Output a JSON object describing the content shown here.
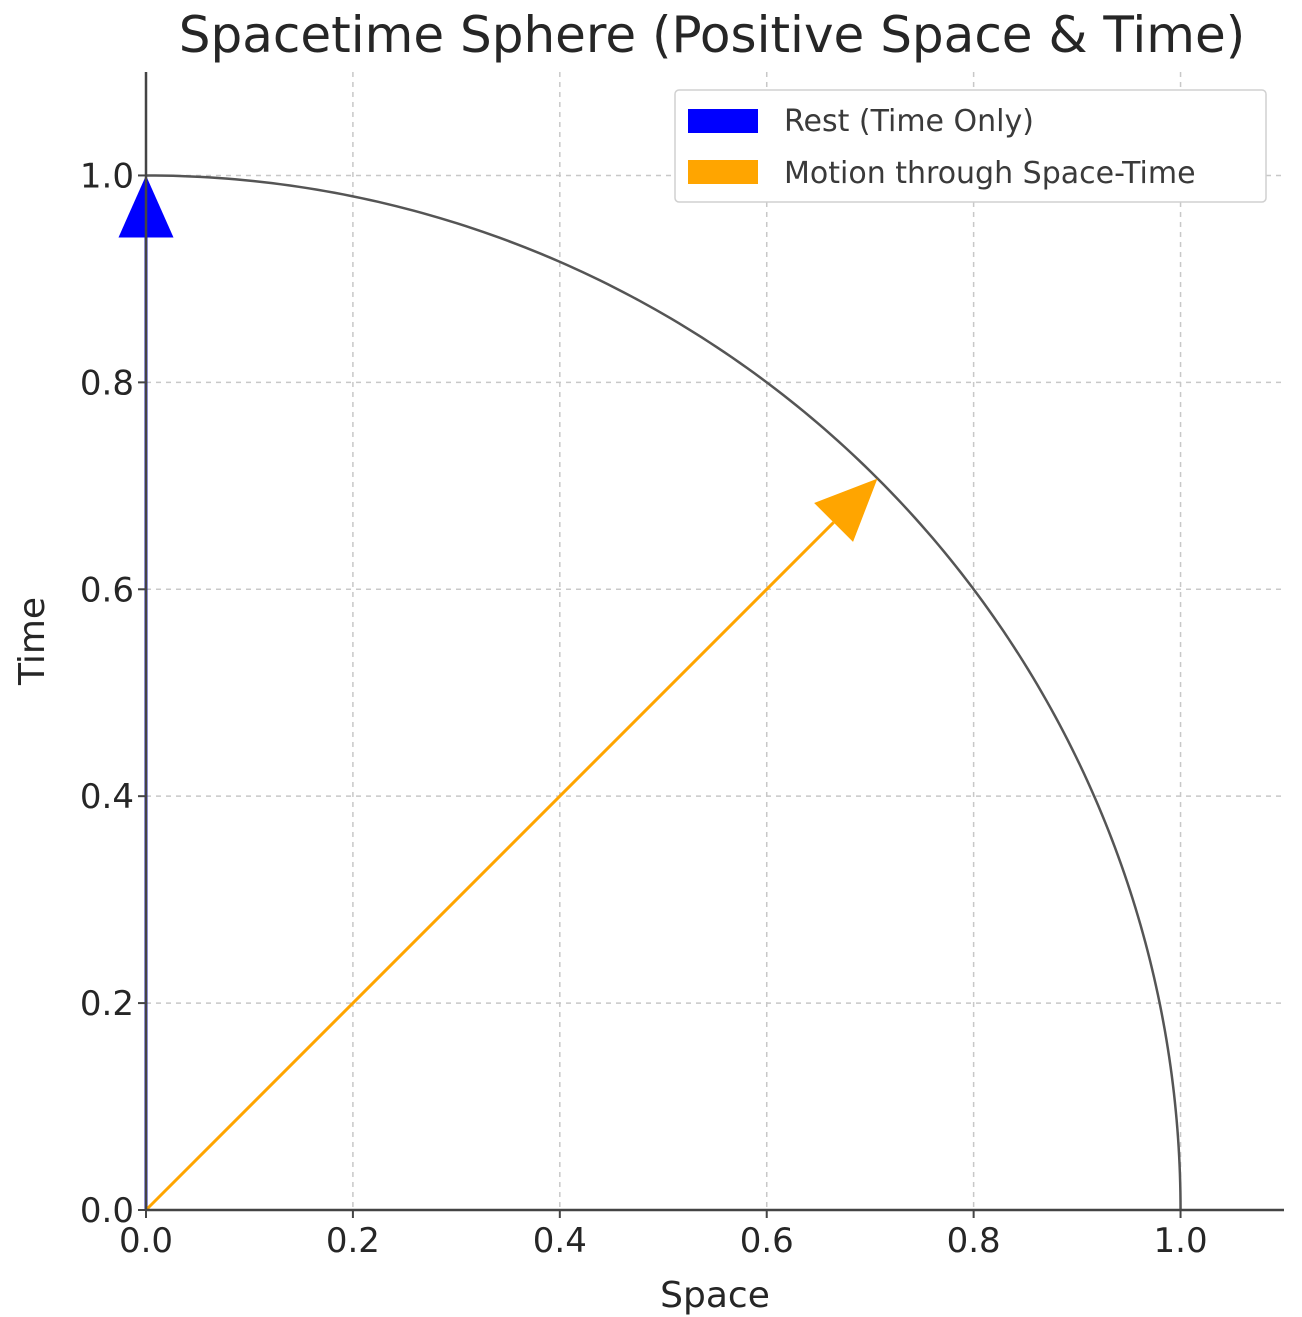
{
  "chart_data": {
    "type": "line",
    "title": "Spacetime Sphere (Positive Space & Time)",
    "xlabel": "Space",
    "ylabel": "Time",
    "xlim": [
      0,
      1.1
    ],
    "ylim": [
      0,
      1.1
    ],
    "xticks": [
      "0.0",
      "0.2",
      "0.4",
      "0.6",
      "0.8",
      "1.0"
    ],
    "yticks": [
      "0.0",
      "0.2",
      "0.4",
      "0.6",
      "0.8",
      "1.0"
    ],
    "grid": true,
    "legend_position": "top-right",
    "curve": {
      "shape": "quarter-circle",
      "radius": 1.0,
      "color": "#555555"
    },
    "series": [
      {
        "name": "Rest (Time Only)",
        "kind": "arrow",
        "from": [
          0,
          0
        ],
        "to": [
          0,
          1.0
        ],
        "color": "#0000ff"
      },
      {
        "name": "Motion through Space-Time",
        "kind": "arrow",
        "from": [
          0,
          0
        ],
        "to": [
          0.707,
          0.707
        ],
        "color": "#ffa500"
      }
    ]
  }
}
